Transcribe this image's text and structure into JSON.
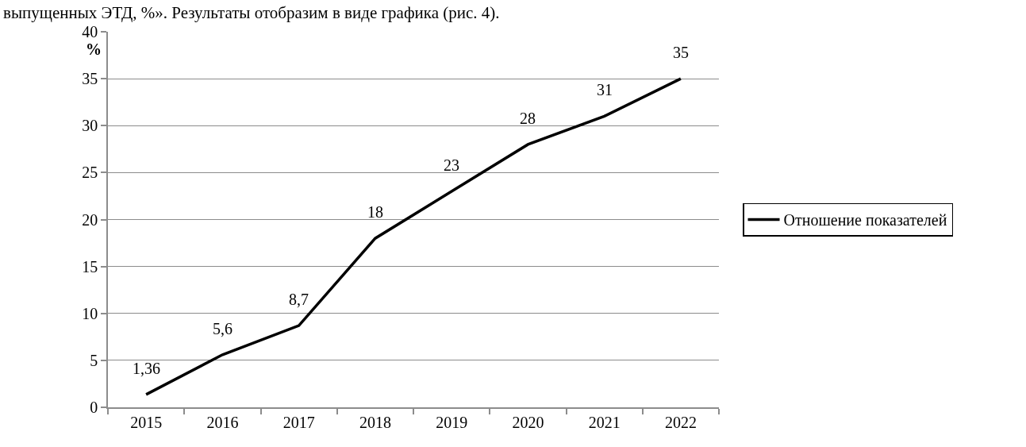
{
  "chart_data": {
    "type": "line",
    "ylabel": "%",
    "annotations": [
      "выпущенных ЭТД, %». Результаты отобразим в виде графика (рис. 4)."
    ],
    "categories": [
      "2015",
      "2016",
      "2017",
      "2018",
      "2019",
      "2020",
      "2021",
      "2022"
    ],
    "series": [
      {
        "name": "Отношение показателей",
        "color": "#000000",
        "values": [
          1.36,
          5.6,
          8.7,
          18,
          23,
          28,
          31,
          35
        ],
        "value_labels": [
          "1,36",
          "5,6",
          "8,7",
          "18",
          "23",
          "28",
          "31",
          "35"
        ]
      }
    ],
    "ylim": [
      0,
      40
    ],
    "yticks": [
      0,
      5,
      10,
      15,
      20,
      25,
      30,
      35,
      40
    ],
    "grid": "y",
    "legend": "right",
    "line_style": "solid"
  }
}
